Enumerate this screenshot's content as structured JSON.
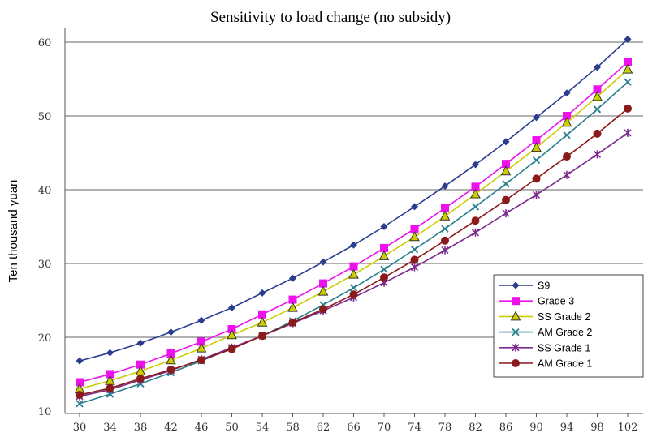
{
  "chart_data": {
    "type": "line",
    "title": "Sensitivity to load change (no subsidy)",
    "xlabel": "",
    "ylabel": "Ten thousand yuan",
    "x": [
      30,
      34,
      38,
      42,
      46,
      50,
      54,
      58,
      62,
      66,
      70,
      74,
      78,
      82,
      86,
      90,
      94,
      98,
      102
    ],
    "x_tick_labels": [
      "30",
      "34",
      "38",
      "42",
      "46",
      "50",
      "54",
      "58",
      "62",
      "66",
      "70",
      "74",
      "78",
      "82",
      "86",
      "90",
      "94",
      "98",
      "102"
    ],
    "ylim": [
      10,
      60
    ],
    "y_ticks": [
      10,
      20,
      30,
      40,
      50,
      60
    ],
    "grid": "horizontal",
    "legend_position": "bottom-right",
    "series": [
      {
        "name": "S9",
        "color": "#2a3d8f",
        "marker": "diamond",
        "values": [
          16.8,
          17.9,
          19.2,
          20.7,
          22.3,
          24.0,
          26.0,
          28.0,
          30.2,
          32.5,
          35.0,
          37.7,
          40.5,
          43.4,
          46.5,
          49.8,
          53.1,
          56.6,
          60.4
        ]
      },
      {
        "name": "Grade 3",
        "color": "#ee11ee",
        "marker": "square",
        "values": [
          13.9,
          15.0,
          16.3,
          17.8,
          19.4,
          21.1,
          23.1,
          25.1,
          27.3,
          29.6,
          32.1,
          34.7,
          37.5,
          40.4,
          43.5,
          46.7,
          50.0,
          53.6,
          57.3
        ]
      },
      {
        "name": "SS Grade 2",
        "color": "#cccc00",
        "marker": "triangle",
        "values": [
          13.0,
          14.1,
          15.4,
          16.9,
          18.5,
          20.3,
          22.0,
          24.0,
          26.2,
          28.5,
          31.0,
          33.6,
          36.4,
          39.4,
          42.5,
          45.7,
          49.1,
          52.6,
          56.3
        ]
      },
      {
        "name": "AM Grade 2",
        "color": "#2a7f8f",
        "marker": "x",
        "values": [
          11.0,
          12.3,
          13.7,
          15.2,
          16.8,
          18.5,
          20.2,
          22.2,
          24.4,
          26.7,
          29.2,
          31.9,
          34.7,
          37.7,
          40.8,
          44.0,
          47.4,
          50.9,
          54.6
        ]
      },
      {
        "name": "SS Grade 1",
        "color": "#7a2a8a",
        "marker": "star",
        "values": [
          12.0,
          12.9,
          14.2,
          15.5,
          17.0,
          18.6,
          20.2,
          21.9,
          23.6,
          25.4,
          27.4,
          29.5,
          31.8,
          34.2,
          36.8,
          39.3,
          42.0,
          44.8,
          47.7
        ]
      },
      {
        "name": "AM Grade 1",
        "color": "#8b1a1a",
        "marker": "circle",
        "values": [
          12.2,
          13.1,
          14.4,
          15.6,
          16.9,
          18.4,
          20.2,
          22.0,
          23.8,
          25.8,
          28.1,
          30.5,
          33.1,
          35.8,
          38.6,
          41.5,
          44.5,
          47.6,
          51.0
        ]
      }
    ]
  }
}
